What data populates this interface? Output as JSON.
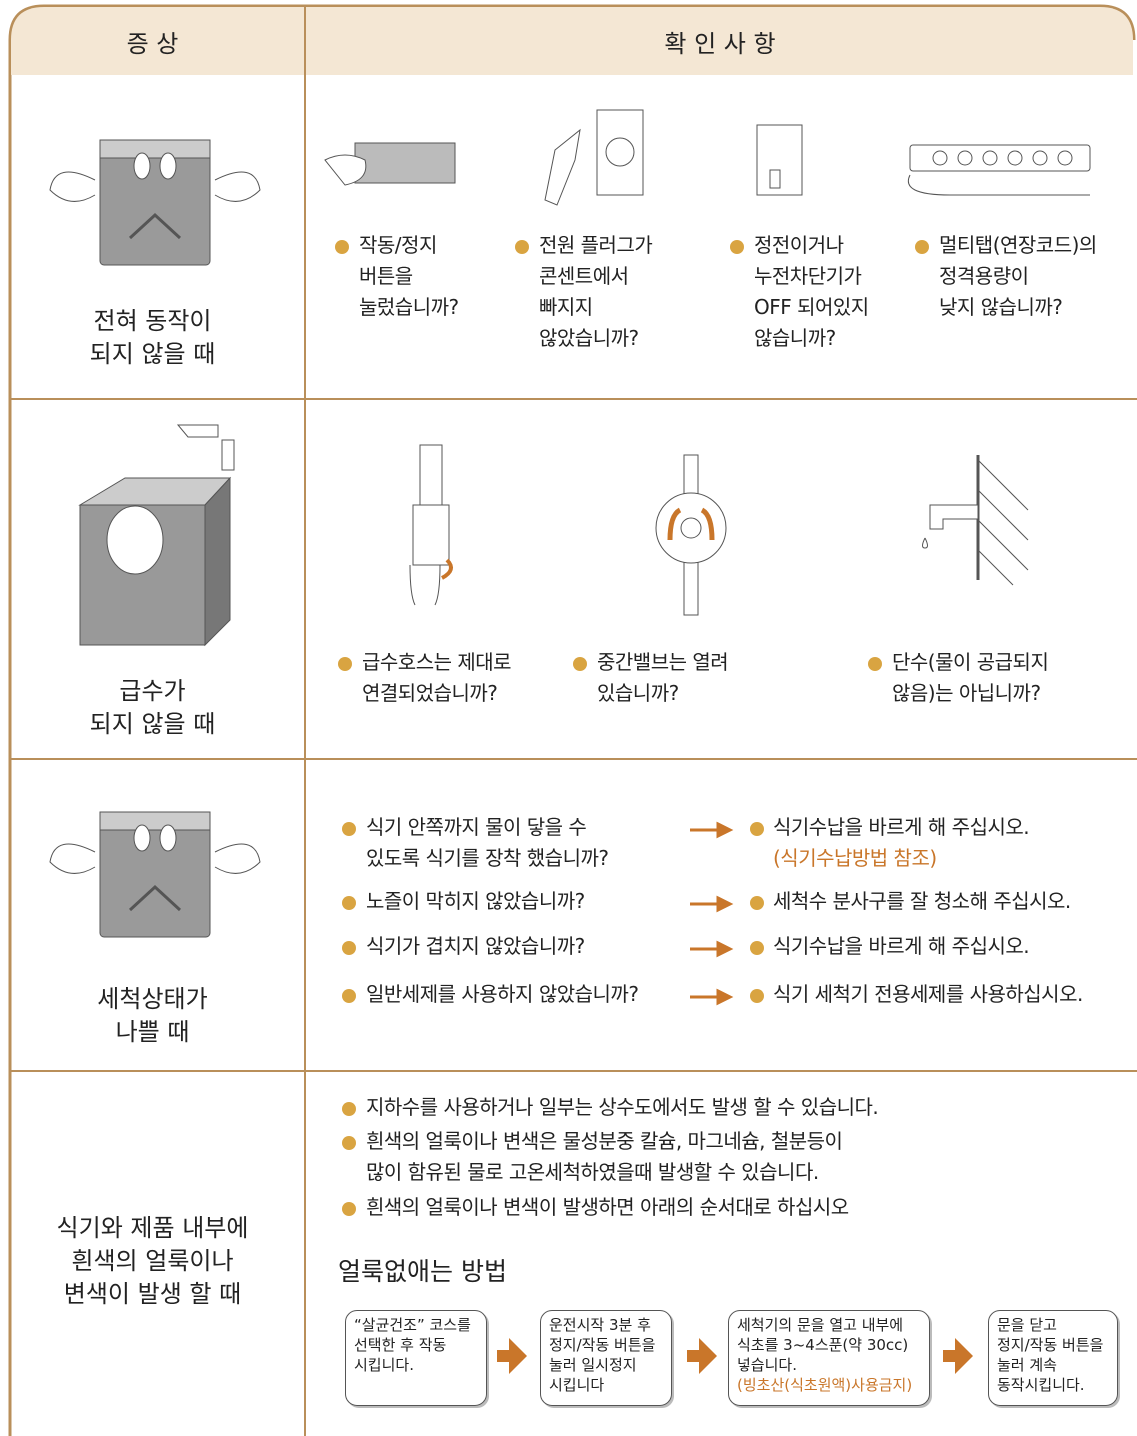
{
  "header": {
    "symptom": "증 상",
    "check": "확 인 사 항"
  },
  "rows": [
    {
      "symptom": "전혀 동작이\n되지 않을 때",
      "checks": [
        "작동/정지\n버튼을\n눌렀습니까?",
        "전원 플러그가\n콘센트에서\n빠지지\n않았습니까?",
        "정전이거나\n누전차단기가\nOFF 되어있지\n않습니까?",
        "멀티탭(연장코드)의\n정격용량이\n낮지 않습니까?"
      ]
    },
    {
      "symptom": "급수가\n되지 않을 때",
      "checks": [
        "급수호스는 제대로\n연결되었습니까?",
        "중간밸브는 열려\n있습니까?",
        "단수(물이 공급되지\n않음)는 아닙니까?"
      ]
    },
    {
      "symptom": "세척상태가\n나쁠 때",
      "pairs": [
        {
          "question": "식기 안쪽까지 물이 닿을 수\n있도록 식기를 장착  했습니까?",
          "answer": "식기수납을 바르게 해 주십시오.",
          "note": "(식기수납방법 참조)"
        },
        {
          "question": "노즐이 막히지 않았습니까?",
          "answer": "세척수 분사구를 잘 청소해 주십시오."
        },
        {
          "question": "식기가 겹치지 않았습니까?",
          "answer": "식기수납을 바르게 해 주십시오."
        },
        {
          "question": "일반세제를 사용하지 않았습니까?",
          "answer": "식기 세척기 전용세제를 사용하십시오."
        }
      ]
    },
    {
      "symptom": "식기와 제품 내부에\n흰색의 얼룩이나\n변색이 발생 할 때",
      "notes": [
        "지하수를 사용하거나 일부는 상수도에서도 발생 할 수 있습니다.",
        "흰색의 얼룩이나 변색은 물성분중 칼슘, 마그네슘, 철분등이\n많이 함유된 물로 고온세척하였을때 발생할 수 있습니다.",
        "흰색의 얼룩이나 변색이 발생하면 아래의 순서대로 하십시오"
      ],
      "method_title": "얼룩없애는 방법",
      "steps": [
        {
          "text": "“살균건조” 코스를\n선택한 후 작동\n시킵니다."
        },
        {
          "text": "운전시작 3분 후\n정지/작동 버튼을\n눌러 일시정지\n시킵니다"
        },
        {
          "text": "세척기의 문을 열고 내부에\n식초를 3~4스푼(약 30cc)\n넣습니다.",
          "warning": "(빙초산(식초원액)사용금지)"
        },
        {
          "text": "문을 닫고\n정지/작동 버튼을\n눌러 계속\n동작시킵니다."
        }
      ]
    }
  ]
}
